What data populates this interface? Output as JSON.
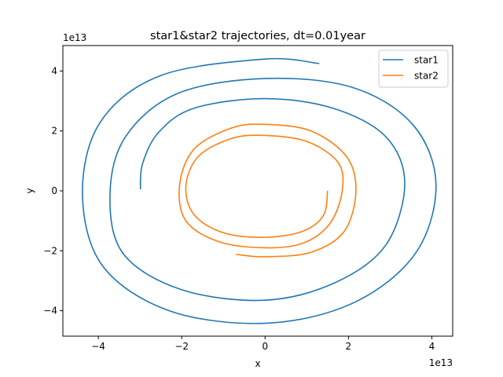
{
  "chart_data": {
    "type": "line",
    "title": "star1&star2 trajectories, dt=0.01year",
    "xlabel": "x",
    "ylabel": "y",
    "x_multiplier": "1e13",
    "y_multiplier": "1e13",
    "xlim": [
      -4.85,
      4.5
    ],
    "ylim": [
      -4.85,
      4.85
    ],
    "x_ticks": [
      -4,
      -2,
      0,
      2,
      4
    ],
    "y_ticks": [
      -4,
      -2,
      0,
      2,
      4
    ],
    "x_tick_labels": [
      "−4",
      "−2",
      "0",
      "2",
      "4"
    ],
    "y_tick_labels": [
      "−4",
      "−2",
      "0",
      "2",
      "4"
    ],
    "grid": false,
    "legend": "top-right",
    "series": [
      {
        "name": "star1",
        "color": "#1f77b4",
        "points": [
          [
            -2.99,
            0.05
          ],
          [
            -2.94,
            0.9
          ],
          [
            -2.55,
            1.96
          ],
          [
            -1.7,
            2.76
          ],
          [
            0.0,
            3.08
          ],
          [
            1.65,
            2.75
          ],
          [
            2.9,
            1.8
          ],
          [
            3.35,
            0.25
          ],
          [
            2.9,
            -1.8
          ],
          [
            1.7,
            -3.05
          ],
          [
            0.0,
            -3.65
          ],
          [
            -2.0,
            -3.3
          ],
          [
            -3.4,
            -2.1
          ],
          [
            -3.72,
            -0.15
          ],
          [
            -3.35,
            1.8
          ],
          [
            -2.1,
            3.25
          ],
          [
            0.0,
            3.75
          ],
          [
            2.1,
            3.45
          ],
          [
            3.55,
            2.2
          ],
          [
            4.1,
            0.2
          ],
          [
            3.6,
            -2.1
          ],
          [
            2.1,
            -3.75
          ],
          [
            0.0,
            -4.42
          ],
          [
            -2.3,
            -4.0
          ],
          [
            -3.9,
            -2.5
          ],
          [
            -4.38,
            -0.1
          ],
          [
            -3.95,
            2.3
          ],
          [
            -2.5,
            3.85
          ],
          [
            0.0,
            4.4
          ],
          [
            1.3,
            4.25
          ]
        ]
      },
      {
        "name": "star2",
        "color": "#ff7f0e",
        "points": [
          [
            1.5,
            0.0
          ],
          [
            1.4,
            -0.82
          ],
          [
            0.9,
            -1.35
          ],
          [
            0.0,
            -1.55
          ],
          [
            -1.0,
            -1.4
          ],
          [
            -1.7,
            -0.8
          ],
          [
            -1.9,
            0.15
          ],
          [
            -1.6,
            1.15
          ],
          [
            -0.8,
            1.75
          ],
          [
            0.0,
            1.85
          ],
          [
            1.0,
            1.65
          ],
          [
            1.75,
            0.95
          ],
          [
            1.85,
            0.0
          ],
          [
            1.55,
            -1.1
          ],
          [
            0.9,
            -1.75
          ],
          [
            0.0,
            -1.9
          ],
          [
            -1.1,
            -1.7
          ],
          [
            -1.9,
            -1.0
          ],
          [
            -2.05,
            0.2
          ],
          [
            -1.7,
            1.4
          ],
          [
            -0.8,
            2.1
          ],
          [
            0.0,
            2.22
          ],
          [
            1.1,
            2.0
          ],
          [
            1.95,
            1.15
          ],
          [
            2.18,
            0.0
          ],
          [
            1.9,
            -1.35
          ],
          [
            1.1,
            -2.05
          ],
          [
            0.0,
            -2.2
          ],
          [
            -0.7,
            -2.12
          ]
        ]
      }
    ]
  }
}
